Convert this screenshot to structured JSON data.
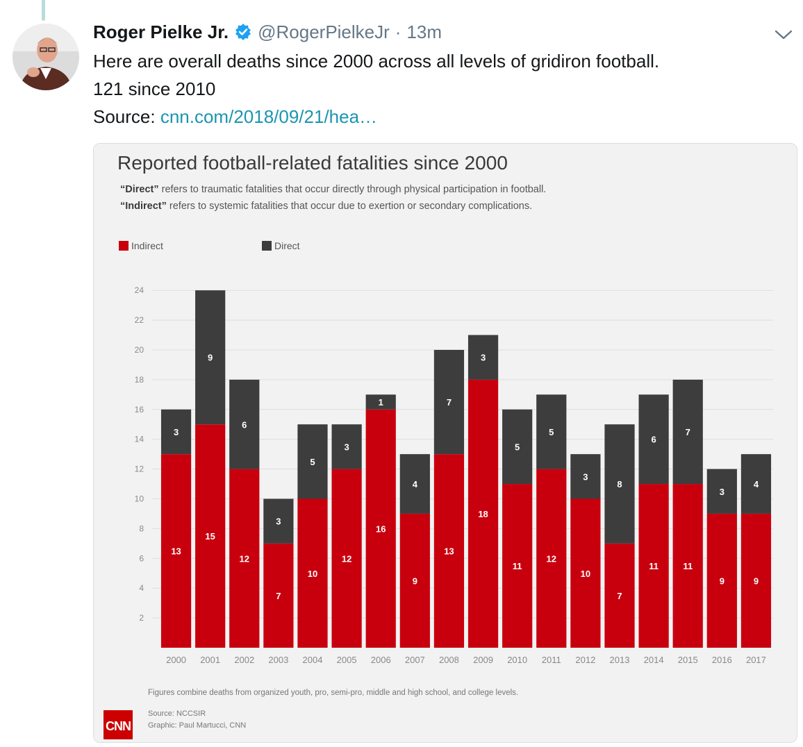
{
  "tweet": {
    "author_name": "Roger Pielke Jr.",
    "author_handle": "@RogerPielkeJr",
    "separator": "·",
    "timestamp": "13m",
    "text_line1": "Here are overall deaths since 2000 across all levels of gridiron football.",
    "text_line2": "121 since 2010",
    "source_label": "Source: ",
    "source_link": "cnn.com/2018/09/21/hea…"
  },
  "icons": {
    "verified": "verified-badge-icon",
    "caret": "chevron-down-icon",
    "brand_logo": "cnn-logo-icon"
  },
  "colors": {
    "indirect": "#c8000e",
    "direct": "#3d3d3d",
    "link": "#1b95b0",
    "verified": "#1da1f2",
    "panel_bg": "#f2f2f2"
  },
  "chart_data": {
    "type": "bar",
    "stacked": true,
    "title": "Reported football-related fatalities since 2000",
    "subtitle_direct_term": "“Direct”",
    "subtitle_direct_text": " refers to traumatic fatalities that occur directly through physical participation in football.",
    "subtitle_indirect_term": "“Indirect”",
    "subtitle_indirect_text": " refers to systemic fatalities that occur due to exertion or secondary complications.",
    "legend": [
      "Indirect",
      "Direct"
    ],
    "legend_placement": "top-left",
    "categories": [
      "2000",
      "2001",
      "2002",
      "2003",
      "2004",
      "2005",
      "2006",
      "2007",
      "2008",
      "2009",
      "2010",
      "2011",
      "2012",
      "2013",
      "2014",
      "2015",
      "2016",
      "2017"
    ],
    "series": [
      {
        "name": "Indirect",
        "values": [
          13,
          15,
          12,
          7,
          10,
          12,
          16,
          9,
          13,
          18,
          11,
          12,
          10,
          7,
          11,
          11,
          9,
          9
        ]
      },
      {
        "name": "Direct",
        "values": [
          3,
          9,
          6,
          3,
          5,
          3,
          1,
          4,
          7,
          3,
          5,
          5,
          3,
          8,
          6,
          7,
          3,
          4
        ]
      }
    ],
    "yticks": [
      2,
      4,
      6,
      8,
      10,
      12,
      14,
      16,
      18,
      20,
      22,
      24
    ],
    "ylim": [
      0,
      24
    ],
    "grid": true,
    "footnote": "Figures combine deaths from organized youth, pro, semi-pro, middle and high school, and college levels.",
    "source_line": "Source: NCCSIR",
    "credit_line": "Graphic: Paul Martucci, CNN",
    "brand": "CNN"
  }
}
